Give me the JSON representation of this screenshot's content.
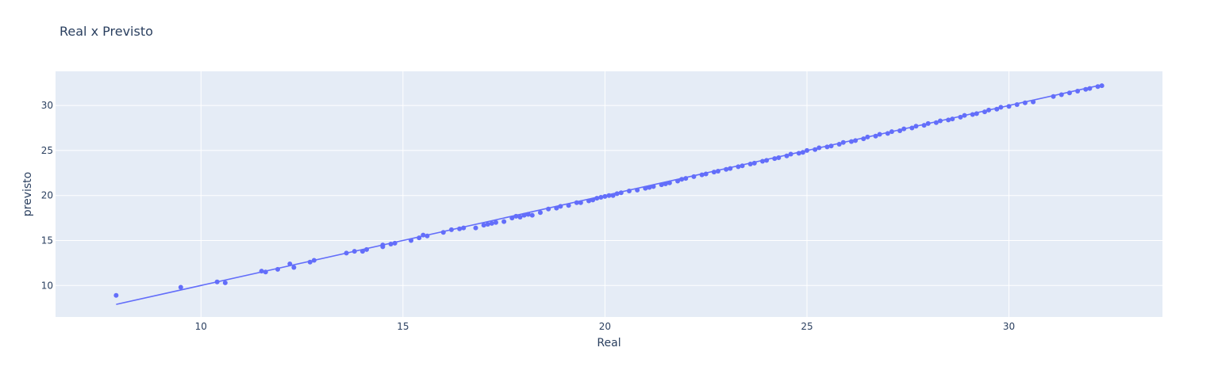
{
  "chart_data": {
    "type": "scatter",
    "title": "Real x Previsto",
    "xlabel": "Real",
    "ylabel": "previsto",
    "xlim": [
      6.4,
      33.8
    ],
    "ylim": [
      6.5,
      33.8
    ],
    "xticks": [
      10,
      15,
      20,
      25,
      30
    ],
    "yticks": [
      10,
      15,
      20,
      25,
      30
    ],
    "grid": true,
    "colors": {
      "plot_bg": "#e5ecf6",
      "grid": "#ffffff",
      "marker": "#636efa",
      "text": "#2a3f5f"
    },
    "series": [
      {
        "mode": "markers",
        "points": [
          [
            7.9,
            8.9
          ],
          [
            9.5,
            9.8
          ],
          [
            10.4,
            10.4
          ],
          [
            10.6,
            10.3
          ],
          [
            11.5,
            11.6
          ],
          [
            11.6,
            11.5
          ],
          [
            11.9,
            11.8
          ],
          [
            12.2,
            12.4
          ],
          [
            12.3,
            12.0
          ],
          [
            12.7,
            12.6
          ],
          [
            12.8,
            12.8
          ],
          [
            13.6,
            13.6
          ],
          [
            13.8,
            13.8
          ],
          [
            14.0,
            13.8
          ],
          [
            14.1,
            14.0
          ],
          [
            14.5,
            14.5
          ],
          [
            14.5,
            14.3
          ],
          [
            14.7,
            14.6
          ],
          [
            14.8,
            14.7
          ],
          [
            15.2,
            15.0
          ],
          [
            15.4,
            15.3
          ],
          [
            15.5,
            15.6
          ],
          [
            15.6,
            15.5
          ],
          [
            16.0,
            15.9
          ],
          [
            16.2,
            16.2
          ],
          [
            16.4,
            16.3
          ],
          [
            16.5,
            16.4
          ],
          [
            16.8,
            16.4
          ],
          [
            17.0,
            16.7
          ],
          [
            17.1,
            16.8
          ],
          [
            17.2,
            16.9
          ],
          [
            17.3,
            17.0
          ],
          [
            17.5,
            17.1
          ],
          [
            17.7,
            17.5
          ],
          [
            17.8,
            17.7
          ],
          [
            17.9,
            17.6
          ],
          [
            18.0,
            17.8
          ],
          [
            18.1,
            17.9
          ],
          [
            18.2,
            17.8
          ],
          [
            18.4,
            18.1
          ],
          [
            18.6,
            18.5
          ],
          [
            18.8,
            18.6
          ],
          [
            18.9,
            18.8
          ],
          [
            19.1,
            18.9
          ],
          [
            19.3,
            19.2
          ],
          [
            19.4,
            19.2
          ],
          [
            19.6,
            19.4
          ],
          [
            19.7,
            19.5
          ],
          [
            19.8,
            19.7
          ],
          [
            19.9,
            19.8
          ],
          [
            20.0,
            19.9
          ],
          [
            20.1,
            20.0
          ],
          [
            20.2,
            20.0
          ],
          [
            20.3,
            20.2
          ],
          [
            20.4,
            20.3
          ],
          [
            20.6,
            20.5
          ],
          [
            20.8,
            20.6
          ],
          [
            21.0,
            20.8
          ],
          [
            21.1,
            20.9
          ],
          [
            21.2,
            21.0
          ],
          [
            21.4,
            21.2
          ],
          [
            21.5,
            21.3
          ],
          [
            21.6,
            21.4
          ],
          [
            21.8,
            21.6
          ],
          [
            21.9,
            21.8
          ],
          [
            22.0,
            21.9
          ],
          [
            22.2,
            22.1
          ],
          [
            22.4,
            22.3
          ],
          [
            22.5,
            22.4
          ],
          [
            22.7,
            22.6
          ],
          [
            22.8,
            22.7
          ],
          [
            23.0,
            22.9
          ],
          [
            23.1,
            23.0
          ],
          [
            23.3,
            23.2
          ],
          [
            23.4,
            23.3
          ],
          [
            23.6,
            23.5
          ],
          [
            23.7,
            23.6
          ],
          [
            23.9,
            23.8
          ],
          [
            24.0,
            23.9
          ],
          [
            24.2,
            24.1
          ],
          [
            24.3,
            24.2
          ],
          [
            24.5,
            24.4
          ],
          [
            24.6,
            24.6
          ],
          [
            24.8,
            24.7
          ],
          [
            24.9,
            24.8
          ],
          [
            25.0,
            25.0
          ],
          [
            25.2,
            25.1
          ],
          [
            25.3,
            25.3
          ],
          [
            25.5,
            25.4
          ],
          [
            25.6,
            25.5
          ],
          [
            25.8,
            25.7
          ],
          [
            25.9,
            25.9
          ],
          [
            26.1,
            26.0
          ],
          [
            26.2,
            26.1
          ],
          [
            26.4,
            26.3
          ],
          [
            26.5,
            26.5
          ],
          [
            26.7,
            26.6
          ],
          [
            26.8,
            26.8
          ],
          [
            27.0,
            26.9
          ],
          [
            27.1,
            27.1
          ],
          [
            27.3,
            27.2
          ],
          [
            27.4,
            27.4
          ],
          [
            27.6,
            27.5
          ],
          [
            27.7,
            27.7
          ],
          [
            27.9,
            27.8
          ],
          [
            28.0,
            28.0
          ],
          [
            28.2,
            28.1
          ],
          [
            28.3,
            28.3
          ],
          [
            28.5,
            28.4
          ],
          [
            28.6,
            28.5
          ],
          [
            28.8,
            28.7
          ],
          [
            28.9,
            28.9
          ],
          [
            29.1,
            29.0
          ],
          [
            29.2,
            29.1
          ],
          [
            29.4,
            29.3
          ],
          [
            29.5,
            29.5
          ],
          [
            29.7,
            29.6
          ],
          [
            29.8,
            29.8
          ],
          [
            30.0,
            29.9
          ],
          [
            30.2,
            30.1
          ],
          [
            30.4,
            30.3
          ],
          [
            30.6,
            30.4
          ],
          [
            31.1,
            31.0
          ],
          [
            31.3,
            31.2
          ],
          [
            31.5,
            31.4
          ],
          [
            31.7,
            31.6
          ],
          [
            31.9,
            31.8
          ],
          [
            32.0,
            31.9
          ],
          [
            32.2,
            32.1
          ],
          [
            32.3,
            32.2
          ]
        ]
      },
      {
        "mode": "lines",
        "points": [
          [
            7.9,
            7.9
          ],
          [
            32.3,
            32.3
          ]
        ]
      }
    ]
  }
}
